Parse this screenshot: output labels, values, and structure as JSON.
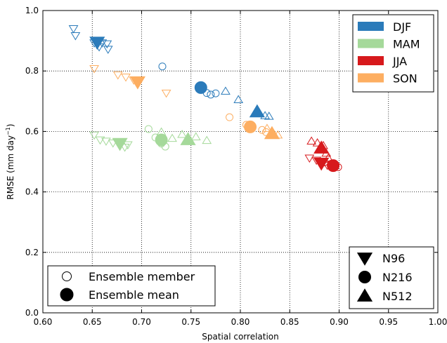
{
  "chart_data": {
    "type": "scatter",
    "xlabel": "Spatial correlation",
    "ylabel": "RMSE (mm day",
    "ylabel_sup": "−1",
    "ylabel_close": ")",
    "xlim": [
      0.6,
      1.0
    ],
    "ylim": [
      0.0,
      1.0
    ],
    "xticks": [
      0.6,
      0.65,
      0.7,
      0.75,
      0.8,
      0.85,
      0.9,
      0.95,
      1.0
    ],
    "yticks": [
      0.0,
      0.2,
      0.4,
      0.6,
      0.8,
      1.0
    ],
    "xtick_labels": [
      "0.60",
      "0.65",
      "0.70",
      "0.75",
      "0.80",
      "0.85",
      "0.90",
      "0.95",
      "1.00"
    ],
    "ytick_labels": [
      "0.0",
      "0.2",
      "0.4",
      "0.6",
      "0.8",
      "1.0"
    ],
    "grid": true,
    "season_legend": {
      "placement": "top-right",
      "entries": [
        {
          "label": "DJF",
          "color": "#2b7bba"
        },
        {
          "label": "MAM",
          "color": "#a5d99a"
        },
        {
          "label": "JJA",
          "color": "#d7191c"
        },
        {
          "label": "SON",
          "color": "#fdae61"
        }
      ]
    },
    "marker_legend": {
      "placement": "bottom-right",
      "entries": [
        {
          "label": "N96",
          "shape": "triangle-down"
        },
        {
          "label": "N216",
          "shape": "circle"
        },
        {
          "label": "N512",
          "shape": "triangle-up"
        }
      ]
    },
    "type_legend": {
      "placement": "bottom-left",
      "entries": [
        {
          "label": "Ensemble member",
          "fill": "open"
        },
        {
          "label": "Ensemble mean",
          "fill": "filled"
        }
      ]
    },
    "series": [
      {
        "season": "DJF",
        "color": "#2b7bba",
        "members": [
          {
            "shape": "triangle-down",
            "x": 0.631,
            "y": 0.94
          },
          {
            "shape": "triangle-down",
            "x": 0.633,
            "y": 0.917
          },
          {
            "shape": "triangle-down",
            "x": 0.652,
            "y": 0.893
          },
          {
            "shape": "triangle-down",
            "x": 0.657,
            "y": 0.88
          },
          {
            "shape": "triangle-down",
            "x": 0.66,
            "y": 0.893
          },
          {
            "shape": "triangle-down",
            "x": 0.665,
            "y": 0.89
          },
          {
            "shape": "triangle-down",
            "x": 0.666,
            "y": 0.872
          },
          {
            "shape": "circle",
            "x": 0.721,
            "y": 0.815
          },
          {
            "shape": "circle",
            "x": 0.766,
            "y": 0.727
          },
          {
            "shape": "circle",
            "x": 0.77,
            "y": 0.722
          },
          {
            "shape": "circle",
            "x": 0.775,
            "y": 0.726
          },
          {
            "shape": "triangle-up",
            "x": 0.785,
            "y": 0.733
          },
          {
            "shape": "triangle-up",
            "x": 0.798,
            "y": 0.705
          },
          {
            "shape": "triangle-up",
            "x": 0.825,
            "y": 0.652
          },
          {
            "shape": "triangle-up",
            "x": 0.829,
            "y": 0.65
          }
        ],
        "means": [
          {
            "shape": "triangle-down",
            "x": 0.655,
            "y": 0.895
          },
          {
            "shape": "circle",
            "x": 0.76,
            "y": 0.745
          },
          {
            "shape": "triangle-up",
            "x": 0.817,
            "y": 0.665
          }
        ]
      },
      {
        "season": "MAM",
        "color": "#a5d99a",
        "members": [
          {
            "shape": "triangle-down",
            "x": 0.652,
            "y": 0.588
          },
          {
            "shape": "triangle-down",
            "x": 0.658,
            "y": 0.572
          },
          {
            "shape": "triangle-down",
            "x": 0.664,
            "y": 0.568
          },
          {
            "shape": "triangle-down",
            "x": 0.671,
            "y": 0.562
          },
          {
            "shape": "triangle-down",
            "x": 0.683,
            "y": 0.548
          },
          {
            "shape": "triangle-down",
            "x": 0.686,
            "y": 0.556
          },
          {
            "shape": "circle",
            "x": 0.707,
            "y": 0.608
          },
          {
            "shape": "circle",
            "x": 0.714,
            "y": 0.58
          },
          {
            "shape": "circle",
            "x": 0.72,
            "y": 0.56
          },
          {
            "shape": "circle",
            "x": 0.724,
            "y": 0.55
          },
          {
            "shape": "triangle-up",
            "x": 0.72,
            "y": 0.598
          },
          {
            "shape": "triangle-up",
            "x": 0.731,
            "y": 0.577
          },
          {
            "shape": "triangle-up",
            "x": 0.741,
            "y": 0.59
          },
          {
            "shape": "triangle-up",
            "x": 0.755,
            "y": 0.582
          },
          {
            "shape": "triangle-up",
            "x": 0.766,
            "y": 0.57
          }
        ],
        "means": [
          {
            "shape": "triangle-down",
            "x": 0.678,
            "y": 0.56
          },
          {
            "shape": "circle",
            "x": 0.72,
            "y": 0.572
          },
          {
            "shape": "triangle-up",
            "x": 0.747,
            "y": 0.573
          }
        ]
      },
      {
        "season": "JJA",
        "color": "#d7191c",
        "members": [
          {
            "shape": "triangle-down",
            "x": 0.87,
            "y": 0.512
          },
          {
            "shape": "triangle-down",
            "x": 0.877,
            "y": 0.505
          },
          {
            "shape": "triangle-down",
            "x": 0.882,
            "y": 0.492
          },
          {
            "shape": "triangle-down",
            "x": 0.888,
            "y": 0.488
          },
          {
            "shape": "circle",
            "x": 0.885,
            "y": 0.498
          },
          {
            "shape": "circle",
            "x": 0.892,
            "y": 0.493
          },
          {
            "shape": "circle",
            "x": 0.896,
            "y": 0.486
          },
          {
            "shape": "circle",
            "x": 0.899,
            "y": 0.482
          },
          {
            "shape": "triangle-up",
            "x": 0.872,
            "y": 0.568
          },
          {
            "shape": "triangle-up",
            "x": 0.878,
            "y": 0.562
          },
          {
            "shape": "triangle-up",
            "x": 0.884,
            "y": 0.553
          },
          {
            "shape": "triangle-up",
            "x": 0.887,
            "y": 0.528
          },
          {
            "shape": "triangle-up",
            "x": 0.889,
            "y": 0.512
          }
        ],
        "means": [
          {
            "shape": "triangle-down",
            "x": 0.882,
            "y": 0.495
          },
          {
            "shape": "circle",
            "x": 0.894,
            "y": 0.487
          },
          {
            "shape": "triangle-up",
            "x": 0.882,
            "y": 0.545
          }
        ]
      },
      {
        "season": "SON",
        "color": "#fdae61",
        "members": [
          {
            "shape": "triangle-down",
            "x": 0.652,
            "y": 0.808
          },
          {
            "shape": "triangle-down",
            "x": 0.676,
            "y": 0.787
          },
          {
            "shape": "triangle-down",
            "x": 0.684,
            "y": 0.78
          },
          {
            "shape": "triangle-down",
            "x": 0.692,
            "y": 0.77
          },
          {
            "shape": "triangle-down",
            "x": 0.725,
            "y": 0.727
          },
          {
            "shape": "circle",
            "x": 0.789,
            "y": 0.647
          },
          {
            "shape": "circle",
            "x": 0.806,
            "y": 0.622
          },
          {
            "shape": "circle",
            "x": 0.811,
            "y": 0.617
          },
          {
            "shape": "circle",
            "x": 0.822,
            "y": 0.605
          },
          {
            "shape": "circle",
            "x": 0.826,
            "y": 0.598
          },
          {
            "shape": "triangle-up",
            "x": 0.827,
            "y": 0.61
          },
          {
            "shape": "triangle-up",
            "x": 0.838,
            "y": 0.588
          }
        ],
        "means": [
          {
            "shape": "triangle-down",
            "x": 0.696,
            "y": 0.764
          },
          {
            "shape": "circle",
            "x": 0.81,
            "y": 0.615
          },
          {
            "shape": "triangle-up",
            "x": 0.832,
            "y": 0.593
          }
        ]
      }
    ]
  }
}
